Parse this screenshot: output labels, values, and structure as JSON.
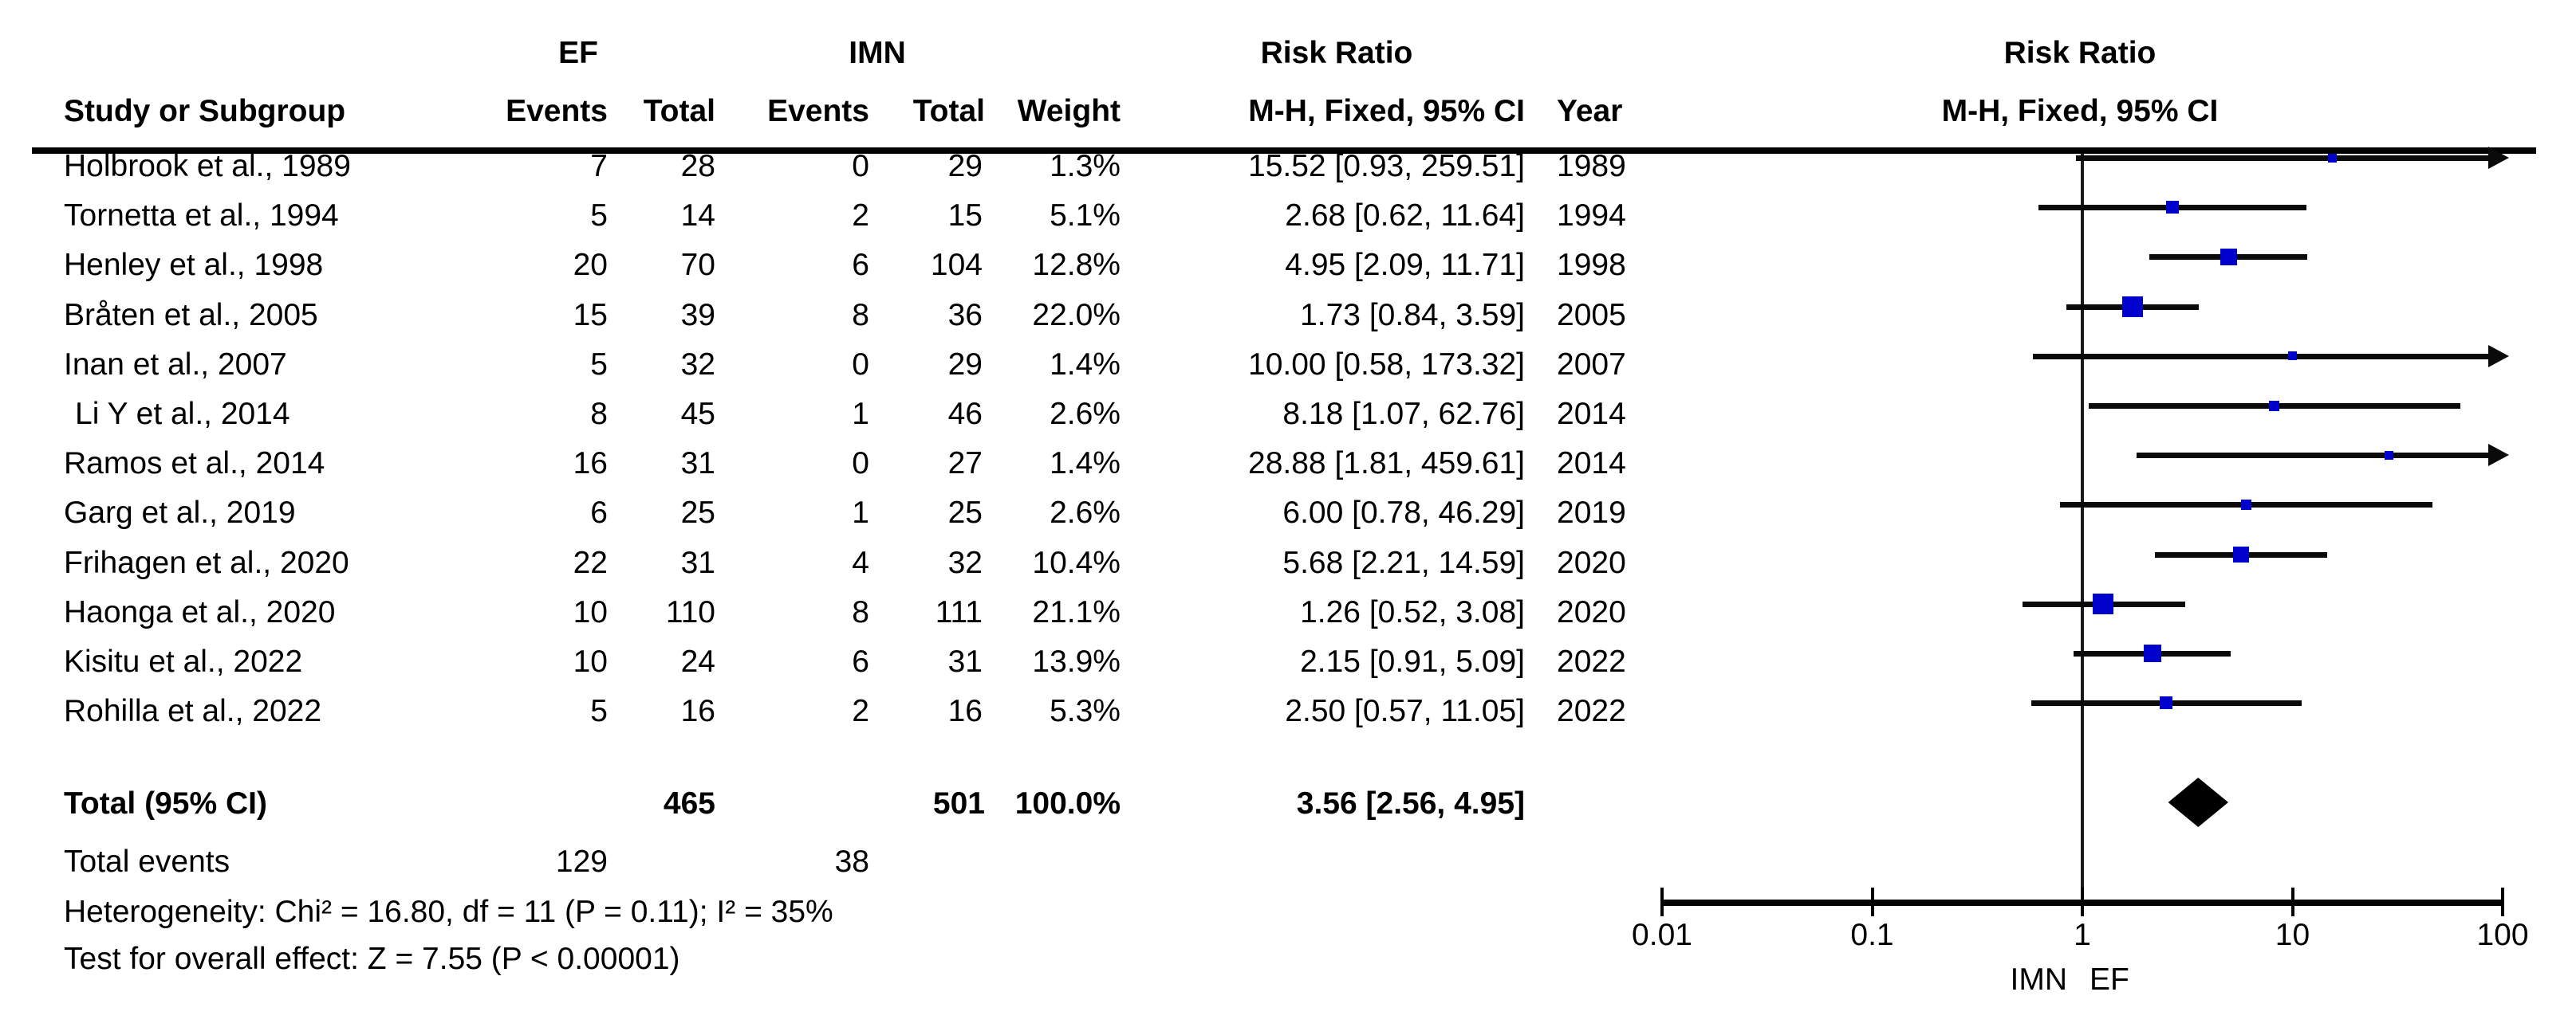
{
  "header": {
    "group_ef": "EF",
    "group_imn": "IMN",
    "group_rr_left": "Risk Ratio",
    "group_rr_right": "Risk Ratio",
    "col_study": "Study or Subgroup",
    "col_events": "Events",
    "col_total": "Total",
    "col_weight": "Weight",
    "col_mh": "M-H, Fixed, 95% CI",
    "col_year": "Year",
    "col_mh_right": "M-H, Fixed, 95% CI"
  },
  "chart_data": {
    "type": "scatter",
    "subtype": "forest-plot",
    "effect_measure": "Risk Ratio",
    "method": "M-H, Fixed, 95% CI",
    "x_scale": "log10",
    "x_range": [
      0.01,
      100
    ],
    "x_ticks": [
      {
        "value": 0.01,
        "label": "0.01"
      },
      {
        "value": 0.1,
        "label": "0.1"
      },
      {
        "value": 1,
        "label": "1"
      },
      {
        "value": 10,
        "label": "10"
      },
      {
        "value": 100,
        "label": "100"
      }
    ],
    "favours_left": "IMN",
    "favours_right": "EF",
    "studies": [
      {
        "name": "Holbrook et al., 1989",
        "ef_events": "7",
        "ef_total": "28",
        "imn_events": "0",
        "imn_total": "29",
        "weight": "1.3%",
        "weight_value": 1.3,
        "rr": 15.52,
        "ci_low": 0.93,
        "ci_high": 259.51,
        "rr_text": "15.52 [0.93, 259.51]",
        "year": "1989",
        "arrow_right": true,
        "indent": 0
      },
      {
        "name": "Tornetta et al., 1994",
        "ef_events": "5",
        "ef_total": "14",
        "imn_events": "2",
        "imn_total": "15",
        "weight": "5.1%",
        "weight_value": 5.1,
        "rr": 2.68,
        "ci_low": 0.62,
        "ci_high": 11.64,
        "rr_text": "2.68 [0.62, 11.64]",
        "year": "1994",
        "arrow_right": false,
        "indent": 0
      },
      {
        "name": "Henley et al., 1998",
        "ef_events": "20",
        "ef_total": "70",
        "imn_events": "6",
        "imn_total": "104",
        "weight": "12.8%",
        "weight_value": 12.8,
        "rr": 4.95,
        "ci_low": 2.09,
        "ci_high": 11.71,
        "rr_text": "4.95 [2.09, 11.71]",
        "year": "1998",
        "arrow_right": false,
        "indent": 0
      },
      {
        "name": "Bråten et al., 2005",
        "ef_events": "15",
        "ef_total": "39",
        "imn_events": "8",
        "imn_total": "36",
        "weight": "22.0%",
        "weight_value": 22.0,
        "rr": 1.73,
        "ci_low": 0.84,
        "ci_high": 3.59,
        "rr_text": "1.73 [0.84, 3.59]",
        "year": "2005",
        "arrow_right": false,
        "indent": 0
      },
      {
        "name": "Inan et al., 2007",
        "ef_events": "5",
        "ef_total": "32",
        "imn_events": "0",
        "imn_total": "29",
        "weight": "1.4%",
        "weight_value": 1.4,
        "rr": 10.0,
        "ci_low": 0.58,
        "ci_high": 173.32,
        "rr_text": "10.00 [0.58, 173.32]",
        "year": "2007",
        "arrow_right": true,
        "indent": 0
      },
      {
        "name": "Li Y et al., 2014",
        "ef_events": "8",
        "ef_total": "45",
        "imn_events": "1",
        "imn_total": "46",
        "weight": "2.6%",
        "weight_value": 2.6,
        "rr": 8.18,
        "ci_low": 1.07,
        "ci_high": 62.76,
        "rr_text": "8.18 [1.07, 62.76]",
        "year": "2014",
        "arrow_right": false,
        "indent": 14
      },
      {
        "name": "Ramos et al., 2014",
        "ef_events": "16",
        "ef_total": "31",
        "imn_events": "0",
        "imn_total": "27",
        "weight": "1.4%",
        "weight_value": 1.4,
        "rr": 28.88,
        "ci_low": 1.81,
        "ci_high": 459.61,
        "rr_text": "28.88 [1.81, 459.61]",
        "year": "2014",
        "arrow_right": true,
        "indent": 0
      },
      {
        "name": "Garg et al., 2019",
        "ef_events": "6",
        "ef_total": "25",
        "imn_events": "1",
        "imn_total": "25",
        "weight": "2.6%",
        "weight_value": 2.6,
        "rr": 6.0,
        "ci_low": 0.78,
        "ci_high": 46.29,
        "rr_text": "6.00 [0.78, 46.29]",
        "year": "2019",
        "arrow_right": false,
        "indent": 0
      },
      {
        "name": "Frihagen et al., 2020",
        "ef_events": "22",
        "ef_total": "31",
        "imn_events": "4",
        "imn_total": "32",
        "weight": "10.4%",
        "weight_value": 10.4,
        "rr": 5.68,
        "ci_low": 2.21,
        "ci_high": 14.59,
        "rr_text": "5.68 [2.21, 14.59]",
        "year": "2020",
        "arrow_right": false,
        "indent": 0
      },
      {
        "name": "Haonga et al., 2020",
        "ef_events": "10",
        "ef_total": "110",
        "imn_events": "8",
        "imn_total": "111",
        "weight": "21.1%",
        "weight_value": 21.1,
        "rr": 1.26,
        "ci_low": 0.52,
        "ci_high": 3.08,
        "rr_text": "1.26 [0.52, 3.08]",
        "year": "2020",
        "arrow_right": false,
        "indent": 0
      },
      {
        "name": "Kisitu et al., 2022",
        "ef_events": "10",
        "ef_total": "24",
        "imn_events": "6",
        "imn_total": "31",
        "weight": "13.9%",
        "weight_value": 13.9,
        "rr": 2.15,
        "ci_low": 0.91,
        "ci_high": 5.09,
        "rr_text": "2.15 [0.91, 5.09]",
        "year": "2022",
        "arrow_right": false,
        "indent": 0
      },
      {
        "name": "Rohilla et al., 2022",
        "ef_events": "5",
        "ef_total": "16",
        "imn_events": "2",
        "imn_total": "16",
        "weight": "5.3%",
        "weight_value": 5.3,
        "rr": 2.5,
        "ci_low": 0.57,
        "ci_high": 11.05,
        "rr_text": "2.50 [0.57, 11.05]",
        "year": "2022",
        "arrow_right": false,
        "indent": 0
      }
    ],
    "total": {
      "label": "Total (95% CI)",
      "ef_total": "465",
      "imn_total": "501",
      "weight": "100.0%",
      "rr": 3.56,
      "ci_low": 2.56,
      "ci_high": 4.95,
      "rr_text": "3.56 [2.56, 4.95]"
    }
  },
  "footer": {
    "total_events_label": "Total events",
    "total_events_ef": "129",
    "total_events_imn": "38",
    "heterogeneity": "Heterogeneity: Chi² = 16.80, df = 11 (P = 0.11); I² = 35%",
    "overall_effect": "Test for overall effect: Z = 7.55 (P < 0.00001)"
  },
  "colors": {
    "square": "#0000CC",
    "ci_line": "#0a0a0a",
    "diamond": "#000000",
    "axis": "#000000",
    "text": "#000000"
  }
}
